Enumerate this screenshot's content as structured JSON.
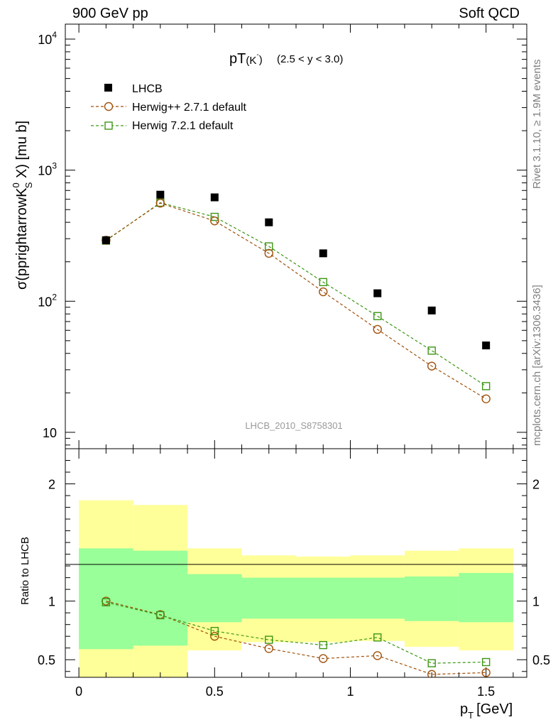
{
  "header": {
    "left": "900 GeV pp",
    "right": "Soft QCD"
  },
  "side_labels": {
    "top": "Rivet 3.1.10, ≥ 1.9M events",
    "bottom": "mcplots.cern.ch [arXiv:1306.3436]"
  },
  "chart_data": {
    "type": "scatter",
    "title_main": "pT",
    "title_sub": "(K",
    "title_sup": "-",
    "title_close": ")",
    "title_range": "(2.5 < y < 3.0)",
    "watermark": "LHCB_2010_S8758301",
    "xlabel_main": "p",
    "xlabel_sub": "T",
    "xlabel_unit": "[GeV]",
    "ylabel_main": "σ(pprightarrowK",
    "ylabel_sup": "0",
    "ylabel_sub": "S",
    "ylabel_tail": " X) [mu b]",
    "ratio_ylabel": "Ratio to LHCB",
    "xlim": [
      -0.05,
      1.65
    ],
    "ylim": [
      7.5,
      13000
    ],
    "yscale": "log",
    "ratio_ylim": [
      0.35,
      2.3
    ],
    "x_ticks": [
      {
        "v": 0,
        "label": "0"
      },
      {
        "v": 0.5,
        "label": "0.5"
      },
      {
        "v": 1,
        "label": "1"
      },
      {
        "v": 1.5,
        "label": "1.5"
      }
    ],
    "y_ticks": [
      {
        "v": 10,
        "label": "10"
      },
      {
        "v": 100,
        "label": "10",
        "sup": "2"
      },
      {
        "v": 1000,
        "label": "10",
        "sup": "3"
      },
      {
        "v": 10000,
        "label": "10",
        "sup": "4"
      }
    ],
    "ratio_ticks": [
      {
        "v": 0.5,
        "label": "0.5"
      },
      {
        "v": 1,
        "label": "1"
      },
      {
        "v": 2,
        "label": "2"
      }
    ],
    "x": [
      0.1,
      0.3,
      0.5,
      0.7,
      0.9,
      1.1,
      1.3,
      1.5
    ],
    "bin_edges": [
      0,
      0.2,
      0.4,
      0.6,
      0.8,
      1.0,
      1.2,
      1.4,
      1.6
    ],
    "series": [
      {
        "name": "LHCB",
        "color": "#000000",
        "marker": "filled-square",
        "values": [
          292,
          650,
          620,
          400,
          232,
          115,
          85,
          46
        ]
      },
      {
        "name": "Herwig++ 2.7.1 default",
        "color": "#a0500a",
        "marker": "open-circle",
        "values": [
          292,
          560,
          410,
          232,
          118,
          61,
          32,
          18
        ]
      },
      {
        "name": "Herwig 7.2.1 default",
        "color": "#3c9614",
        "marker": "open-square",
        "values": [
          290,
          565,
          440,
          262,
          140,
          77,
          42,
          22.5
        ]
      }
    ],
    "ratio_series": [
      {
        "name": "Herwig++ 2.7.1 default",
        "color": "#a0500a",
        "marker": "open-circle",
        "values": [
          1.0,
          0.885,
          0.7,
          0.595,
          0.51,
          0.535,
          0.375,
          0.39
        ]
      },
      {
        "name": "Herwig 7.2.1 default",
        "color": "#3c9614",
        "marker": "open-square",
        "values": [
          0.99,
          0.88,
          0.745,
          0.67,
          0.625,
          0.69,
          0.47,
          0.48
        ]
      }
    ],
    "bands": {
      "inner_color": "#99ff99",
      "outer_color": "#ffff99",
      "inner": [
        [
          0.59,
          1.45
        ],
        [
          0.62,
          1.43
        ],
        [
          0.82,
          1.23
        ],
        [
          0.85,
          1.2
        ],
        [
          0.85,
          1.2
        ],
        [
          0.85,
          1.2
        ],
        [
          0.83,
          1.21
        ],
        [
          0.82,
          1.24
        ]
      ],
      "outer": [
        [
          0.2,
          1.86
        ],
        [
          0.2,
          1.82
        ],
        [
          0.58,
          1.45
        ],
        [
          0.65,
          1.39
        ],
        [
          0.65,
          1.38
        ],
        [
          0.66,
          1.39
        ],
        [
          0.61,
          1.43
        ],
        [
          0.58,
          1.45
        ]
      ]
    }
  }
}
